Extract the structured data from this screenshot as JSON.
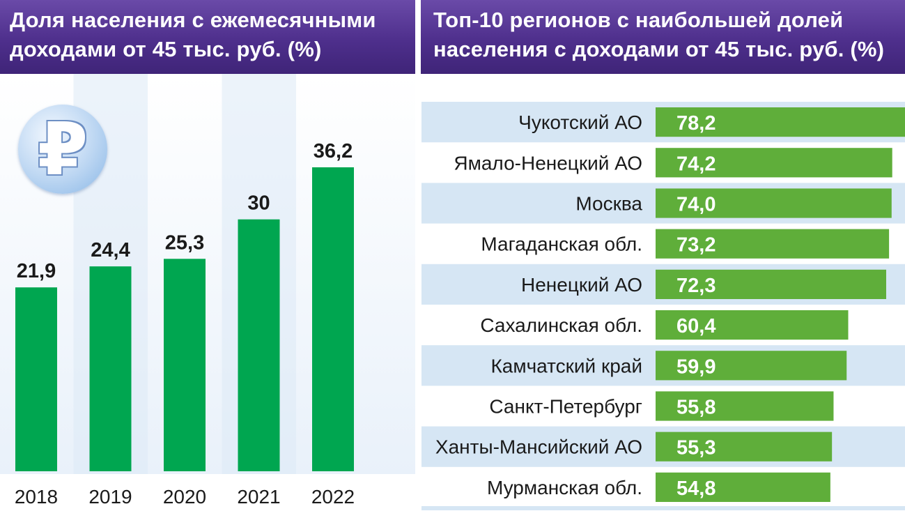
{
  "left_panel": {
    "title_line1": "Доля населения с ежемесячными",
    "title_line2": "доходами от 45 тыс. руб. (%)"
  },
  "right_panel": {
    "title_line1": "Топ-10 регионов с наибольшей долей",
    "title_line2": "населения с доходами от 45 тыс. руб. (%)"
  },
  "icon": {
    "name": "ruble-icon",
    "glyph": "₽"
  },
  "colors": {
    "header": "#4e2f8c",
    "bar": "#00a650",
    "right_bar": "#5fae3a",
    "stripe": "#d6e6f4",
    "bg_gradient": "#e9f1fa"
  },
  "chart_data": [
    {
      "type": "bar",
      "categories": [
        "2018",
        "2019",
        "2020",
        "2021",
        "2022"
      ],
      "values": [
        21.9,
        24.4,
        25.3,
        30,
        36.2
      ],
      "value_labels": [
        "21,9",
        "24,4",
        "25,3",
        "30",
        "36,2"
      ],
      "ylim": [
        0,
        40
      ]
    },
    {
      "type": "bar",
      "orientation": "horizontal",
      "categories": [
        "Чукотский АО",
        "Ямало-Ненецкий АО",
        "Москва",
        "Магаданская обл.",
        "Ненецкий АО",
        "Сахалинская обл.",
        "Камчатский край",
        "Санкт-Петербург",
        "Ханты-Мансийский АО",
        "Мурманская обл."
      ],
      "values": [
        78.2,
        74.2,
        74.0,
        73.2,
        72.3,
        60.4,
        59.9,
        55.8,
        55.3,
        54.8
      ],
      "value_labels": [
        "78,2",
        "74,2",
        "74,0",
        "73,2",
        "72,3",
        "60,4",
        "59,9",
        "55,8",
        "55,3",
        "54,8"
      ],
      "xlim": [
        0,
        78.2
      ]
    }
  ]
}
